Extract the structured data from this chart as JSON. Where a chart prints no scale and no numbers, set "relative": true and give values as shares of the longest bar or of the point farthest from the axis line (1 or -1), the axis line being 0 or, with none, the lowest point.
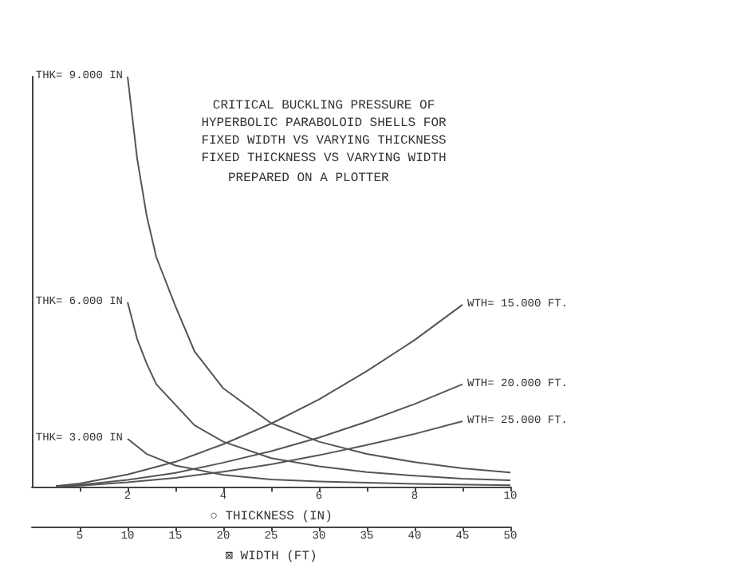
{
  "chart_data": {
    "type": "line",
    "relative": true,
    "title": "CRITICAL BUCKLING PRESSURE OF\nHYPERBOLIC PARABOLOID SHELLS FOR\nFIXED WIDTH VS VARYING THICKNESS\nFIXED THICKNESS VS VARYING WIDTH",
    "annotations": [
      "PREPARED ON A PLOTTER"
    ],
    "xlabel": "○ THICKNESS (IN)",
    "x2label": "⊠ WIDTH (FT)",
    "xlim": [
      0,
      10
    ],
    "xticks": [
      {
        "value": 1,
        "label": null
      },
      2,
      {
        "value": 3,
        "label": null
      },
      4,
      {
        "value": 5,
        "label": null
      },
      6,
      {
        "value": 7,
        "label": null
      },
      8,
      {
        "value": 9,
        "label": null
      },
      10
    ],
    "x2lim": [
      0,
      50
    ],
    "x2ticks": [
      5,
      10,
      15,
      20,
      25,
      30,
      35,
      40,
      45,
      50
    ],
    "grid": false,
    "legend": false,
    "marker": "none",
    "line_style": "solid",
    "series": [
      {
        "name": "THK= 9.000 IN",
        "color": "#555555",
        "axis": "x2",
        "x": [
          10,
          11,
          12,
          13,
          15,
          17,
          20,
          25,
          30,
          35,
          40,
          45,
          50
        ],
        "values": [
          1.0,
          0.8,
          0.66,
          0.56,
          0.44,
          0.33,
          0.24,
          0.155,
          0.11,
          0.08,
          0.06,
          0.045,
          0.035
        ]
      },
      {
        "name": "THK= 6.000 IN",
        "color": "#555555",
        "axis": "x2",
        "x": [
          10,
          11,
          12,
          13,
          15,
          17,
          20,
          25,
          30,
          35,
          40,
          45,
          50
        ],
        "values": [
          0.45,
          0.36,
          0.3,
          0.25,
          0.2,
          0.15,
          0.11,
          0.07,
          0.05,
          0.036,
          0.027,
          0.02,
          0.016
        ]
      },
      {
        "name": "THK= 3.000 IN",
        "color": "#555555",
        "axis": "x2",
        "x": [
          10,
          12,
          15,
          20,
          25,
          30,
          40,
          50
        ],
        "values": [
          0.117,
          0.08,
          0.052,
          0.029,
          0.018,
          0.013,
          0.007,
          0.004
        ]
      },
      {
        "name": "WTH= 15.000 FT.",
        "color": "#555555",
        "x": [
          0.5,
          1,
          2,
          3,
          4,
          5,
          6,
          7,
          8,
          9
        ],
        "values": [
          0.002,
          0.008,
          0.03,
          0.061,
          0.104,
          0.154,
          0.213,
          0.282,
          0.358,
          0.444
        ]
      },
      {
        "name": "WTH= 20.000 FT.",
        "color": "#555555",
        "x": [
          0.5,
          1,
          2,
          3,
          4,
          5,
          6,
          7,
          8,
          9
        ],
        "values": [
          0.001,
          0.005,
          0.017,
          0.034,
          0.059,
          0.087,
          0.12,
          0.159,
          0.202,
          0.25
        ]
      },
      {
        "name": "WTH= 25.000 FT.",
        "color": "#555555",
        "x": [
          0.5,
          1,
          2,
          3,
          4,
          5,
          6,
          7,
          8,
          9
        ],
        "values": [
          0.001,
          0.003,
          0.011,
          0.022,
          0.037,
          0.055,
          0.077,
          0.102,
          0.129,
          0.16
        ]
      }
    ]
  }
}
